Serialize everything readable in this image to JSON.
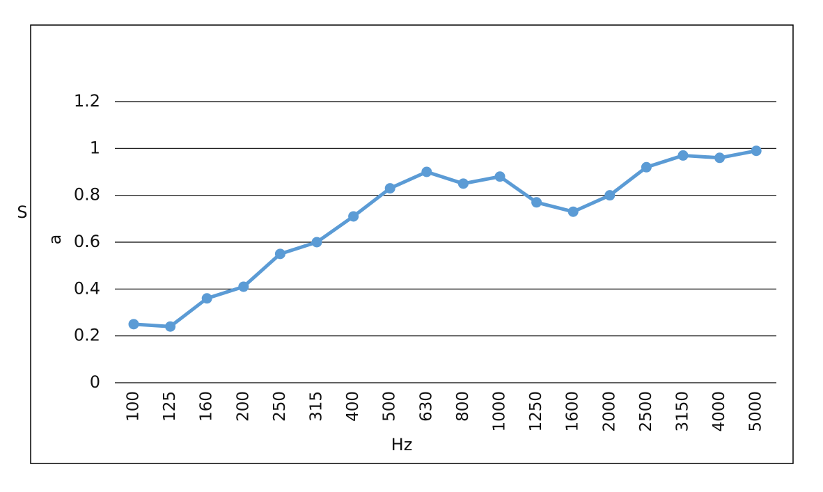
{
  "chart_data": {
    "type": "line",
    "title": "",
    "xlabel": "Hz",
    "ylabel": "a",
    "side_label": "S",
    "categories": [
      "100",
      "125",
      "160",
      "200",
      "250",
      "315",
      "400",
      "500",
      "630",
      "800",
      "1000",
      "1250",
      "1600",
      "2000",
      "2500",
      "3150",
      "4000",
      "5000"
    ],
    "series": [
      {
        "values": [
          0.25,
          0.24,
          0.36,
          0.41,
          0.55,
          0.6,
          0.71,
          0.83,
          0.9,
          0.85,
          0.88,
          0.77,
          0.73,
          0.8,
          0.92,
          0.97,
          0.96,
          0.99
        ],
        "color": "#5B9BD5"
      }
    ],
    "ylim": [
      0,
      1.2
    ],
    "yticks": [
      0,
      0.2,
      0.4,
      0.6,
      0.8,
      1,
      1.2
    ],
    "ytick_labels": [
      "0",
      "0.2",
      "0.4",
      "0.6",
      "0.8",
      "1",
      "1.2"
    ],
    "grid": true,
    "legend": "none"
  }
}
